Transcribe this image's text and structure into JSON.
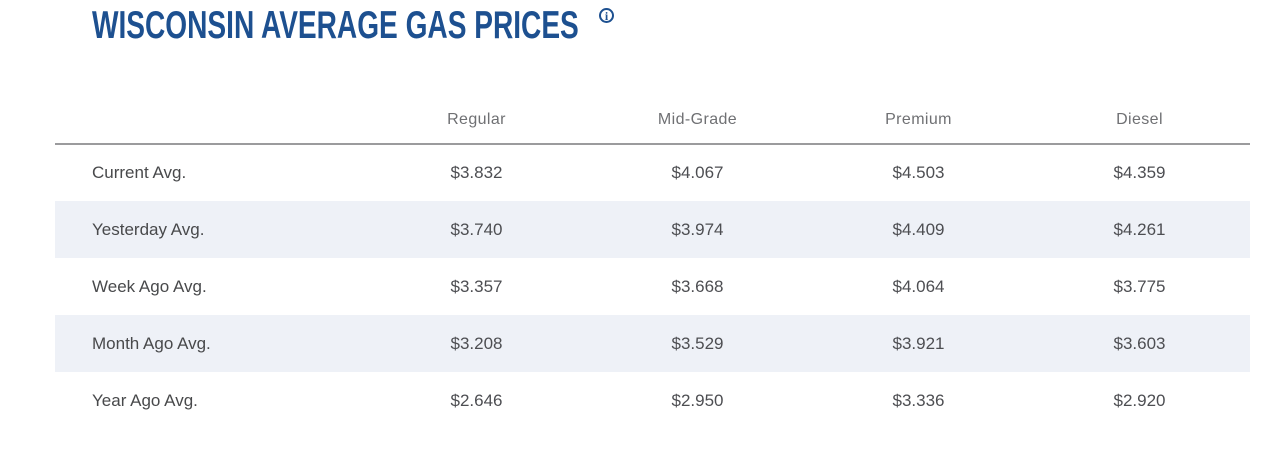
{
  "page": {
    "title": "WISCONSIN AVERAGE GAS PRICES",
    "info_icon_glyph": "i"
  },
  "colors": {
    "title_blue": "#1d5090",
    "header_text_gray": "#6f7073",
    "body_text_gray": "#4d4e52",
    "row_stripe": "#eef1f7",
    "header_divider": "#9b9b9d",
    "background": "#ffffff"
  },
  "table": {
    "columns": [
      "Regular",
      "Mid-Grade",
      "Premium",
      "Diesel"
    ],
    "rows": [
      {
        "label": "Current Avg.",
        "values": [
          "$3.832",
          "$4.067",
          "$4.503",
          "$4.359"
        ]
      },
      {
        "label": "Yesterday Avg.",
        "values": [
          "$3.740",
          "$3.974",
          "$4.409",
          "$4.261"
        ]
      },
      {
        "label": "Week Ago Avg.",
        "values": [
          "$3.357",
          "$3.668",
          "$4.064",
          "$3.775"
        ]
      },
      {
        "label": "Month Ago Avg.",
        "values": [
          "$3.208",
          "$3.529",
          "$3.921",
          "$3.603"
        ]
      },
      {
        "label": "Year Ago Avg.",
        "values": [
          "$2.646",
          "$2.950",
          "$3.336",
          "$2.920"
        ]
      }
    ]
  }
}
